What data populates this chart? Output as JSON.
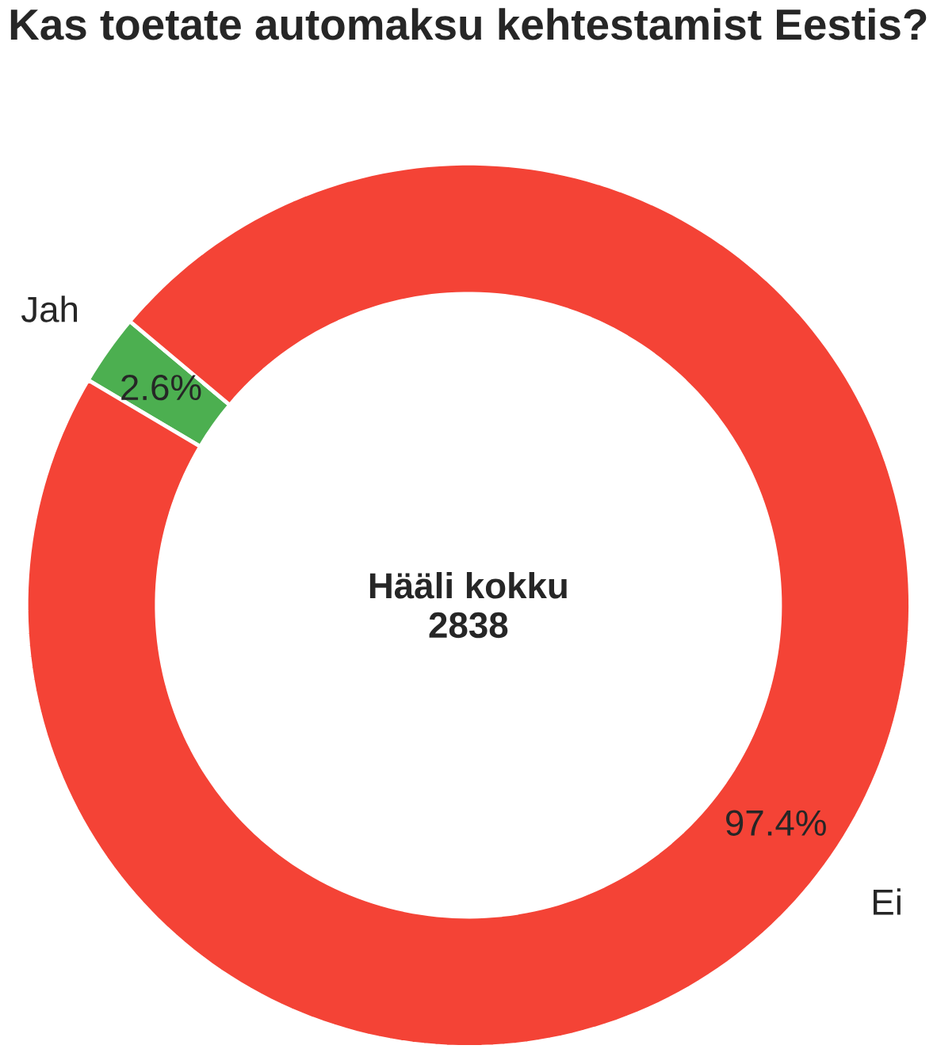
{
  "chart_data": {
    "type": "donut",
    "title": "Kas toetate automaksu kehtestamist Eestis?",
    "categories": [
      "Jah",
      "Ei"
    ],
    "values": [
      2.6,
      97.4
    ],
    "colors": [
      "#4caf50",
      "#f44336"
    ],
    "value_labels": [
      "2.6%",
      "97.4%"
    ],
    "annotations": [
      "**Hääli kokku**",
      "**2838**"
    ]
  }
}
